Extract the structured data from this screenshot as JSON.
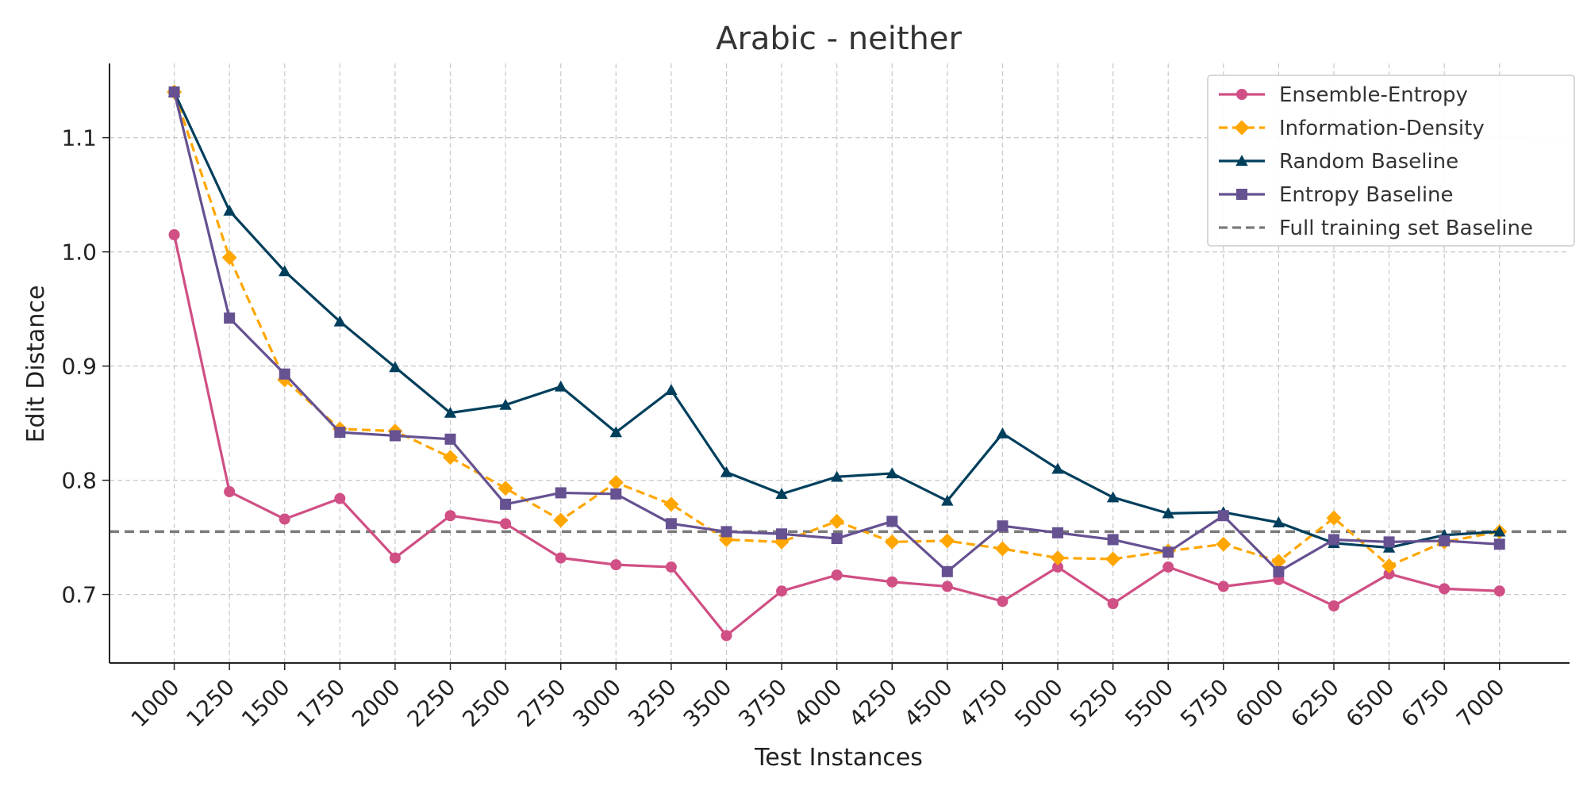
{
  "chart_data": {
    "type": "line",
    "title": "Arabic - neither",
    "xlabel": "Test Instances",
    "ylabel": "Edit Distance",
    "x": [
      1000,
      1250,
      1500,
      1750,
      2000,
      2250,
      2500,
      2750,
      3000,
      3250,
      3500,
      3750,
      4000,
      4250,
      4500,
      4750,
      5000,
      5250,
      5500,
      5750,
      6000,
      6250,
      6500,
      6750,
      7000
    ],
    "x_tick_labels": [
      "1000",
      "1250",
      "1500",
      "1750",
      "2000",
      "2250",
      "2500",
      "2750",
      "3000",
      "3250",
      "3500",
      "3750",
      "4000",
      "4250",
      "4500",
      "4750",
      "5000",
      "5250",
      "5500",
      "5750",
      "6000",
      "6250",
      "6500",
      "6750",
      "7000"
    ],
    "y_ticks": [
      0.7,
      0.8,
      0.9,
      1.0,
      1.1
    ],
    "y_tick_labels": [
      "0.7",
      "0.8",
      "0.9",
      "1.0",
      "1.1"
    ],
    "ylim": [
      0.64,
      1.165
    ],
    "xlim": [
      707,
      7317
    ],
    "grid": true,
    "legend_position": "top-right",
    "series": [
      {
        "name": "Ensemble-Entropy",
        "color": "#d04f85",
        "marker": "circle",
        "dash": "solid",
        "values": [
          1.015,
          0.79,
          0.766,
          0.784,
          0.732,
          0.769,
          0.762,
          0.732,
          0.726,
          0.724,
          0.664,
          0.703,
          0.717,
          0.711,
          0.707,
          0.694,
          0.724,
          0.692,
          0.724,
          0.707,
          0.713,
          0.69,
          0.718,
          0.705,
          0.703
        ]
      },
      {
        "name": "Information-Density",
        "color": "#ffa600",
        "marker": "diamond",
        "dash": "dashed",
        "values": [
          1.14,
          0.995,
          0.888,
          0.845,
          0.843,
          0.82,
          0.793,
          0.765,
          0.798,
          0.779,
          0.748,
          0.746,
          0.764,
          0.746,
          0.747,
          0.74,
          0.732,
          0.731,
          0.738,
          0.744,
          0.729,
          0.767,
          0.725,
          0.746,
          0.755
        ]
      },
      {
        "name": "Random Baseline",
        "color": "#003f5c",
        "marker": "triangle",
        "dash": "solid",
        "values": [
          1.14,
          1.036,
          0.983,
          0.939,
          0.899,
          0.859,
          0.866,
          0.882,
          0.842,
          0.879,
          0.807,
          0.788,
          0.803,
          0.806,
          0.782,
          0.841,
          0.81,
          0.785,
          0.771,
          0.772,
          0.763,
          0.745,
          0.741,
          0.752,
          0.755
        ]
      },
      {
        "name": "Entropy Baseline",
        "color": "#665191",
        "marker": "square",
        "dash": "solid",
        "values": [
          1.14,
          0.942,
          0.893,
          0.842,
          0.839,
          0.836,
          0.779,
          0.789,
          0.788,
          0.762,
          0.755,
          0.753,
          0.749,
          0.764,
          0.72,
          0.76,
          0.754,
          0.748,
          0.737,
          0.769,
          0.72,
          0.748,
          0.746,
          0.747,
          0.744
        ]
      },
      {
        "name": "Full training set Baseline",
        "color": "#7a7a7a",
        "marker": "none",
        "dash": "dashed",
        "constant": 0.755
      }
    ]
  }
}
